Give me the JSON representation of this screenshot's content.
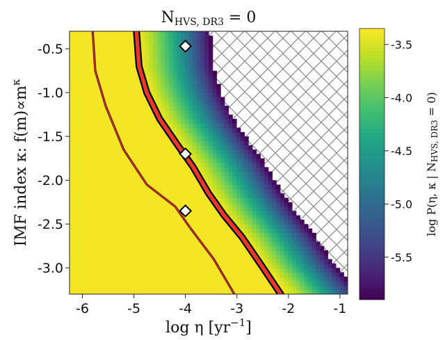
{
  "chart_data": {
    "type": "heatmap",
    "title": "N",
    "title_sub": "HVS, DR3",
    "title_tail": " = 0",
    "xlabel": "log η [yr",
    "xlabel_sup": "−1",
    "xlabel_tail": "]",
    "ylabel": "IMF index κ: f(m)∝m",
    "ylabel_sup": "κ",
    "xlim": [
      -6.25,
      -0.85
    ],
    "ylim": [
      -3.3,
      -0.3
    ],
    "x_ticks": [
      -6,
      -5,
      -4,
      -3,
      -2,
      -1
    ],
    "x_tick_labels": [
      "-6",
      "-5",
      "-4",
      "-3",
      "-2",
      "-1"
    ],
    "y_ticks": [
      -0.5,
      -1.0,
      -1.5,
      -2.0,
      -2.5,
      -3.0
    ],
    "y_tick_labels": [
      "-0.5",
      "-1.0",
      "-1.5",
      "-2.0",
      "-2.5",
      "-3.0"
    ],
    "colorbar": {
      "label": "log P(η, κ | N",
      "label_sub": "HVS, DR3",
      "label_tail": " = 0)",
      "range": [
        -5.9,
        -3.35
      ],
      "ticks": [
        -3.5,
        -4.0,
        -4.5,
        -5.0,
        -5.5
      ],
      "tick_labels": [
        "-3.5",
        "-4.0",
        "-4.5",
        "-5.0",
        "-5.5"
      ],
      "colormap": "viridis"
    },
    "hatched_region": "excluded (upper-right)",
    "contour_outer_thin": [
      {
        "x": -5.8,
        "y": -0.3
      },
      {
        "x": -5.75,
        "y": -0.75
      },
      {
        "x": -5.55,
        "y": -1.15
      },
      {
        "x": -5.2,
        "y": -1.65
      },
      {
        "x": -4.75,
        "y": -2.05
      },
      {
        "x": -4.2,
        "y": -2.3
      },
      {
        "x": -3.9,
        "y": -2.55
      },
      {
        "x": -3.45,
        "y": -2.9
      },
      {
        "x": -3.05,
        "y": -3.3
      }
    ],
    "contour_edge_thin": [
      {
        "x": -5.0,
        "y": -0.3
      },
      {
        "x": -4.95,
        "y": -0.7
      },
      {
        "x": -4.8,
        "y": -1.0
      },
      {
        "x": -4.55,
        "y": -1.3
      },
      {
        "x": -4.2,
        "y": -1.6
      },
      {
        "x": -3.9,
        "y": -1.85
      },
      {
        "x": -3.6,
        "y": -2.15
      },
      {
        "x": -3.3,
        "y": -2.4
      },
      {
        "x": -2.95,
        "y": -2.65
      },
      {
        "x": -2.6,
        "y": -2.95
      },
      {
        "x": -2.1,
        "y": -3.3
      }
    ],
    "contour_main": [
      {
        "x": -4.95,
        "y": -0.3
      },
      {
        "x": -4.9,
        "y": -0.7
      },
      {
        "x": -4.75,
        "y": -1.0
      },
      {
        "x": -4.5,
        "y": -1.3
      },
      {
        "x": -4.15,
        "y": -1.6
      },
      {
        "x": -3.85,
        "y": -1.85
      },
      {
        "x": -3.55,
        "y": -2.15
      },
      {
        "x": -3.25,
        "y": -2.4
      },
      {
        "x": -2.9,
        "y": -2.65
      },
      {
        "x": -2.55,
        "y": -2.95
      },
      {
        "x": -2.15,
        "y": -3.3
      }
    ],
    "markers": [
      {
        "x": -4.0,
        "y": -0.47
      },
      {
        "x": -4.0,
        "y": -1.7
      },
      {
        "x": -4.0,
        "y": -2.35
      }
    ]
  }
}
